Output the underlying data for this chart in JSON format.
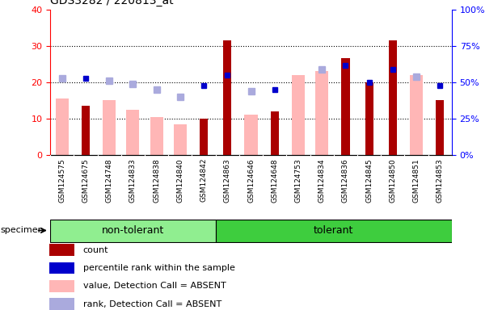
{
  "title": "GDS3282 / 220813_at",
  "samples": [
    "GSM124575",
    "GSM124675",
    "GSM124748",
    "GSM124833",
    "GSM124838",
    "GSM124840",
    "GSM124842",
    "GSM124863",
    "GSM124646",
    "GSM124648",
    "GSM124753",
    "GSM124834",
    "GSM124836",
    "GSM124845",
    "GSM124850",
    "GSM124851",
    "GSM124853"
  ],
  "groups": [
    {
      "label": "non-tolerant",
      "start": 0,
      "end": 6,
      "color": "#90EE90"
    },
    {
      "label": "tolerant",
      "start": 7,
      "end": 16,
      "color": "#3ECD3E"
    }
  ],
  "count_red": [
    0,
    13.5,
    0,
    0,
    0,
    0,
    10,
    31.5,
    0,
    12,
    0,
    0,
    26.5,
    20,
    31.5,
    0,
    15
  ],
  "value_absent_pink": [
    15.5,
    0,
    15,
    12.5,
    10.5,
    8.5,
    0,
    0,
    11,
    0,
    22,
    23,
    0,
    0,
    0,
    22,
    0
  ],
  "rank_absent_lavender": [
    21,
    0,
    20.5,
    19.5,
    18,
    16,
    0,
    0,
    17.5,
    0,
    0,
    23.5,
    0,
    0,
    0,
    21.5,
    0
  ],
  "percentile_blue": [
    0,
    21,
    0,
    0,
    0,
    0,
    19,
    22,
    0,
    18,
    0,
    0,
    24.5,
    20,
    23.5,
    0,
    19
  ],
  "ylim_left": [
    0,
    40
  ],
  "ylim_right": [
    0,
    100
  ],
  "yticks_left": [
    0,
    10,
    20,
    30,
    40
  ],
  "yticks_right": [
    0,
    25,
    50,
    75,
    100
  ],
  "background_color": "#ffffff",
  "xtick_bg_color": "#cccccc",
  "red_color": "#AA0000",
  "pink_color": "#FFB6B6",
  "lavender_color": "#AAAADD",
  "blue_color": "#0000CC",
  "legend_items": [
    {
      "label": "count",
      "color": "#AA0000"
    },
    {
      "label": "percentile rank within the sample",
      "color": "#0000CC"
    },
    {
      "label": "value, Detection Call = ABSENT",
      "color": "#FFB6B6"
    },
    {
      "label": "rank, Detection Call = ABSENT",
      "color": "#AAAADD"
    }
  ],
  "specimen_label": "specimen"
}
